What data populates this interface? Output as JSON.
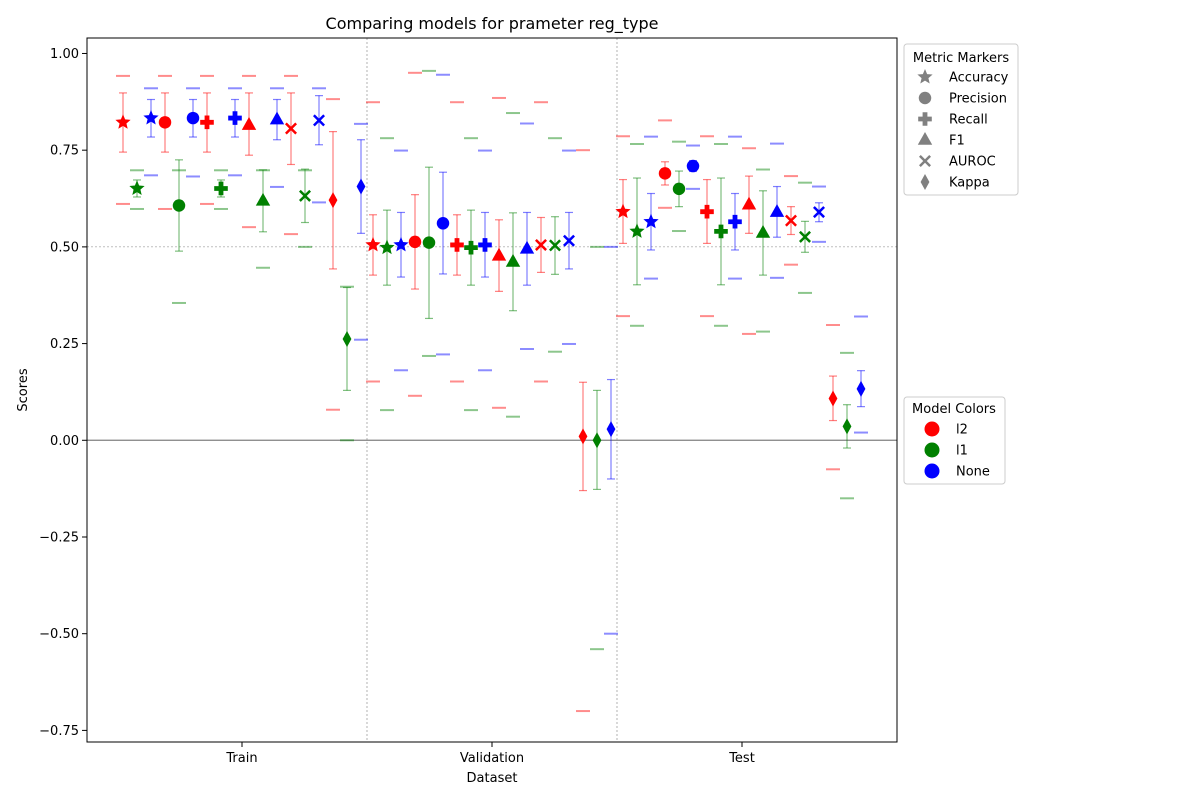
{
  "chart_data": {
    "type": "scatter",
    "title": "Comparing models for prameter reg_type",
    "xlabel": "Dataset",
    "ylabel": "Scores",
    "categories": [
      "Train",
      "Validation",
      "Test"
    ],
    "ylim": [
      -0.78,
      1.04
    ],
    "yticks": [
      -0.75,
      -0.5,
      -0.25,
      0.0,
      0.25,
      0.5,
      0.75,
      1.0
    ],
    "ytick_labels": [
      "−0.75",
      "−0.50",
      "−0.25",
      "0.00",
      "0.25",
      "0.50",
      "0.75",
      "1.00"
    ],
    "reference_lines": [
      0.0,
      0.5
    ],
    "metrics": [
      "Accuracy",
      "Precision",
      "Recall",
      "F1",
      "AUROC",
      "Kappa"
    ],
    "metric_markers": [
      "star",
      "circle",
      "plus",
      "triangle",
      "x",
      "diamond"
    ],
    "models": [
      "l2",
      "l1",
      "None"
    ],
    "model_colors": [
      "#ff0000",
      "#008000",
      "#0000ff"
    ],
    "series": [
      {
        "name": "l2",
        "color": "#ff0000",
        "points": [
          {
            "dataset": "Train",
            "metric": "Accuracy",
            "value": 0.822,
            "err_low": 0.745,
            "err_high": 0.898,
            "min": 0.611,
            "max": 0.942
          },
          {
            "dataset": "Train",
            "metric": "Precision",
            "value": 0.822,
            "err_low": 0.745,
            "err_high": 0.898,
            "min": 0.598,
            "max": 0.942
          },
          {
            "dataset": "Train",
            "metric": "Recall",
            "value": 0.822,
            "err_low": 0.745,
            "err_high": 0.898,
            "min": 0.611,
            "max": 0.942
          },
          {
            "dataset": "Train",
            "metric": "F1",
            "value": 0.815,
            "err_low": 0.737,
            "err_high": 0.898,
            "min": 0.551,
            "max": 0.942
          },
          {
            "dataset": "Train",
            "metric": "AUROC",
            "value": 0.806,
            "err_low": 0.713,
            "err_high": 0.898,
            "min": 0.533,
            "max": 0.942
          },
          {
            "dataset": "Train",
            "metric": "Kappa",
            "value": 0.621,
            "err_low": 0.443,
            "err_high": 0.798,
            "min": 0.079,
            "max": 0.882
          },
          {
            "dataset": "Validation",
            "metric": "Accuracy",
            "value": 0.505,
            "err_low": 0.427,
            "err_high": 0.583,
            "min": 0.152,
            "max": 0.874
          },
          {
            "dataset": "Validation",
            "metric": "Precision",
            "value": 0.513,
            "err_low": 0.391,
            "err_high": 0.635,
            "min": 0.115,
            "max": 0.95
          },
          {
            "dataset": "Validation",
            "metric": "Recall",
            "value": 0.505,
            "err_low": 0.427,
            "err_high": 0.583,
            "min": 0.152,
            "max": 0.874
          },
          {
            "dataset": "Validation",
            "metric": "F1",
            "value": 0.477,
            "err_low": 0.385,
            "err_high": 0.57,
            "min": 0.084,
            "max": 0.885
          },
          {
            "dataset": "Validation",
            "metric": "AUROC",
            "value": 0.505,
            "err_low": 0.434,
            "err_high": 0.576,
            "min": 0.152,
            "max": 0.874
          },
          {
            "dataset": "Validation",
            "metric": "Kappa",
            "value": 0.01,
            "err_low": -0.13,
            "err_high": 0.15,
            "min": -0.7,
            "max": 0.75
          },
          {
            "dataset": "Test",
            "metric": "Accuracy",
            "value": 0.591,
            "err_low": 0.509,
            "err_high": 0.674,
            "min": 0.321,
            "max": 0.786
          },
          {
            "dataset": "Test",
            "metric": "Precision",
            "value": 0.69,
            "err_low": 0.66,
            "err_high": 0.72,
            "min": 0.601,
            "max": 0.827
          },
          {
            "dataset": "Test",
            "metric": "Recall",
            "value": 0.591,
            "err_low": 0.509,
            "err_high": 0.674,
            "min": 0.321,
            "max": 0.786
          },
          {
            "dataset": "Test",
            "metric": "F1",
            "value": 0.609,
            "err_low": 0.535,
            "err_high": 0.683,
            "min": 0.275,
            "max": 0.755
          },
          {
            "dataset": "Test",
            "metric": "AUROC",
            "value": 0.568,
            "err_low": 0.532,
            "err_high": 0.604,
            "min": 0.454,
            "max": 0.683
          },
          {
            "dataset": "Test",
            "metric": "Kappa",
            "value": 0.108,
            "err_low": 0.051,
            "err_high": 0.166,
            "min": -0.075,
            "max": 0.298
          }
        ]
      },
      {
        "name": "l1",
        "color": "#008000",
        "points": [
          {
            "dataset": "Train",
            "metric": "Accuracy",
            "value": 0.651,
            "err_low": 0.629,
            "err_high": 0.673,
            "min": 0.598,
            "max": 0.698
          },
          {
            "dataset": "Train",
            "metric": "Precision",
            "value": 0.607,
            "err_low": 0.489,
            "err_high": 0.725,
            "min": 0.355,
            "max": 0.698
          },
          {
            "dataset": "Train",
            "metric": "Recall",
            "value": 0.651,
            "err_low": 0.629,
            "err_high": 0.673,
            "min": 0.598,
            "max": 0.698
          },
          {
            "dataset": "Train",
            "metric": "F1",
            "value": 0.619,
            "err_low": 0.539,
            "err_high": 0.699,
            "min": 0.446,
            "max": 0.698
          },
          {
            "dataset": "Train",
            "metric": "AUROC",
            "value": 0.632,
            "err_low": 0.563,
            "err_high": 0.701,
            "min": 0.5,
            "max": 0.698
          },
          {
            "dataset": "Train",
            "metric": "Kappa",
            "value": 0.262,
            "err_low": 0.129,
            "err_high": 0.395,
            "min": 0.0,
            "max": 0.397
          },
          {
            "dataset": "Validation",
            "metric": "Accuracy",
            "value": 0.498,
            "err_low": 0.401,
            "err_high": 0.595,
            "min": 0.078,
            "max": 0.781
          },
          {
            "dataset": "Validation",
            "metric": "Precision",
            "value": 0.511,
            "err_low": 0.315,
            "err_high": 0.706,
            "min": 0.218,
            "max": 0.955
          },
          {
            "dataset": "Validation",
            "metric": "Recall",
            "value": 0.498,
            "err_low": 0.401,
            "err_high": 0.595,
            "min": 0.078,
            "max": 0.781
          },
          {
            "dataset": "Validation",
            "metric": "F1",
            "value": 0.461,
            "err_low": 0.335,
            "err_high": 0.588,
            "min": 0.061,
            "max": 0.846
          },
          {
            "dataset": "Validation",
            "metric": "AUROC",
            "value": 0.504,
            "err_low": 0.429,
            "err_high": 0.578,
            "min": 0.229,
            "max": 0.781
          },
          {
            "dataset": "Validation",
            "metric": "Kappa",
            "value": 0.0,
            "err_low": -0.127,
            "err_high": 0.129,
            "min": -0.54,
            "max": 0.5
          },
          {
            "dataset": "Test",
            "metric": "Accuracy",
            "value": 0.54,
            "err_low": 0.402,
            "err_high": 0.678,
            "min": 0.296,
            "max": 0.766
          },
          {
            "dataset": "Test",
            "metric": "Precision",
            "value": 0.65,
            "err_low": 0.604,
            "err_high": 0.696,
            "min": 0.541,
            "max": 0.772
          },
          {
            "dataset": "Test",
            "metric": "Recall",
            "value": 0.54,
            "err_low": 0.402,
            "err_high": 0.678,
            "min": 0.296,
            "max": 0.766
          },
          {
            "dataset": "Test",
            "metric": "F1",
            "value": 0.536,
            "err_low": 0.427,
            "err_high": 0.645,
            "min": 0.281,
            "max": 0.7
          },
          {
            "dataset": "Test",
            "metric": "AUROC",
            "value": 0.526,
            "err_low": 0.486,
            "err_high": 0.566,
            "min": 0.381,
            "max": 0.666
          },
          {
            "dataset": "Test",
            "metric": "Kappa",
            "value": 0.036,
            "err_low": -0.02,
            "err_high": 0.092,
            "min": -0.15,
            "max": 0.226
          }
        ]
      },
      {
        "name": "None",
        "color": "#0000ff",
        "points": [
          {
            "dataset": "Train",
            "metric": "Accuracy",
            "value": 0.833,
            "err_low": 0.784,
            "err_high": 0.881,
            "min": 0.685,
            "max": 0.91
          },
          {
            "dataset": "Train",
            "metric": "Precision",
            "value": 0.833,
            "err_low": 0.784,
            "err_high": 0.881,
            "min": 0.682,
            "max": 0.91
          },
          {
            "dataset": "Train",
            "metric": "Recall",
            "value": 0.833,
            "err_low": 0.784,
            "err_high": 0.881,
            "min": 0.685,
            "max": 0.91
          },
          {
            "dataset": "Train",
            "metric": "F1",
            "value": 0.829,
            "err_low": 0.777,
            "err_high": 0.881,
            "min": 0.655,
            "max": 0.91
          },
          {
            "dataset": "Train",
            "metric": "AUROC",
            "value": 0.827,
            "err_low": 0.764,
            "err_high": 0.891,
            "min": 0.615,
            "max": 0.91
          },
          {
            "dataset": "Train",
            "metric": "Kappa",
            "value": 0.656,
            "err_low": 0.535,
            "err_high": 0.777,
            "min": 0.26,
            "max": 0.818
          },
          {
            "dataset": "Validation",
            "metric": "Accuracy",
            "value": 0.505,
            "err_low": 0.422,
            "err_high": 0.589,
            "min": 0.181,
            "max": 0.749
          },
          {
            "dataset": "Validation",
            "metric": "Precision",
            "value": 0.561,
            "err_low": 0.43,
            "err_high": 0.693,
            "min": 0.222,
            "max": 0.945
          },
          {
            "dataset": "Validation",
            "metric": "Recall",
            "value": 0.505,
            "err_low": 0.422,
            "err_high": 0.589,
            "min": 0.181,
            "max": 0.749
          },
          {
            "dataset": "Validation",
            "metric": "F1",
            "value": 0.495,
            "err_low": 0.401,
            "err_high": 0.589,
            "min": 0.236,
            "max": 0.819
          },
          {
            "dataset": "Validation",
            "metric": "AUROC",
            "value": 0.516,
            "err_low": 0.443,
            "err_high": 0.589,
            "min": 0.249,
            "max": 0.749
          },
          {
            "dataset": "Validation",
            "metric": "Kappa",
            "value": 0.029,
            "err_low": -0.1,
            "err_high": 0.157,
            "min": -0.5,
            "max": 0.5
          },
          {
            "dataset": "Test",
            "metric": "Accuracy",
            "value": 0.565,
            "err_low": 0.492,
            "err_high": 0.638,
            "min": 0.418,
            "max": 0.785
          },
          {
            "dataset": "Test",
            "metric": "Precision",
            "value": 0.709,
            "err_low": 0.695,
            "err_high": 0.723,
            "min": 0.65,
            "max": 0.762
          },
          {
            "dataset": "Test",
            "metric": "Recall",
            "value": 0.565,
            "err_low": 0.492,
            "err_high": 0.638,
            "min": 0.418,
            "max": 0.785
          },
          {
            "dataset": "Test",
            "metric": "F1",
            "value": 0.59,
            "err_low": 0.525,
            "err_high": 0.656,
            "min": 0.42,
            "max": 0.767
          },
          {
            "dataset": "Test",
            "metric": "AUROC",
            "value": 0.59,
            "err_low": 0.565,
            "err_high": 0.614,
            "min": 0.513,
            "max": 0.656
          },
          {
            "dataset": "Test",
            "metric": "Kappa",
            "value": 0.133,
            "err_low": 0.087,
            "err_high": 0.18,
            "min": 0.02,
            "max": 0.32
          }
        ]
      }
    ],
    "legends": [
      {
        "title": "Metric Markers",
        "placement": "upper-right-outside",
        "entries": [
          "Accuracy",
          "Precision",
          "Recall",
          "F1",
          "AUROC",
          "Kappa"
        ]
      },
      {
        "title": "Model Colors",
        "placement": "center-right-outside",
        "entries": [
          "l2",
          "l1",
          "None"
        ]
      }
    ],
    "grid": false
  }
}
